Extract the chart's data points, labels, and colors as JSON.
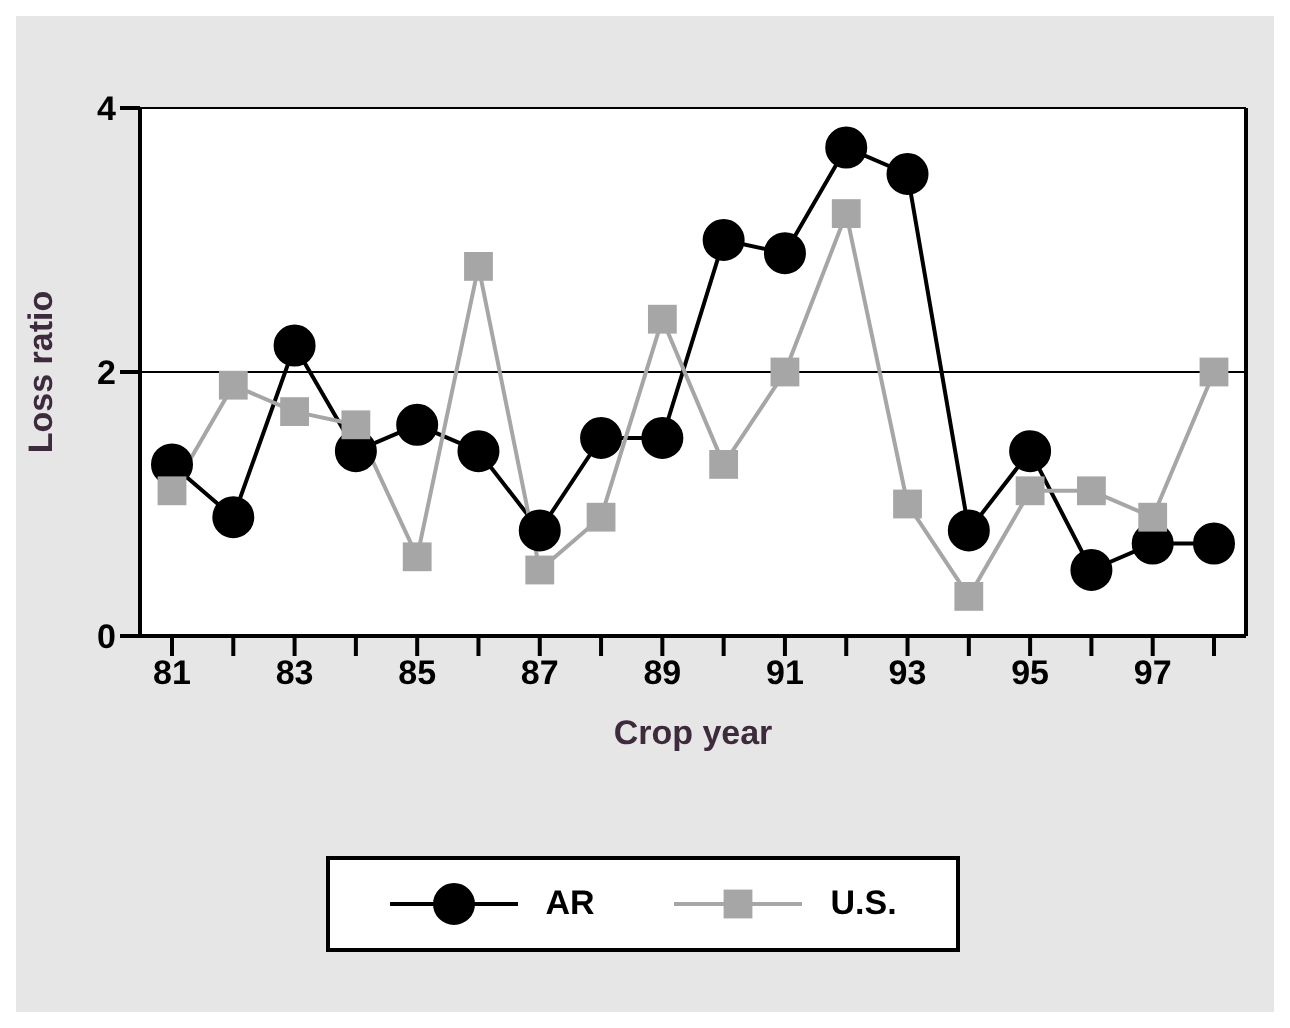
{
  "chart_data": {
    "type": "line",
    "xlabel": "Crop year",
    "ylabel": "Loss ratio",
    "categories": [
      "81",
      null,
      "83",
      null,
      "85",
      null,
      "87",
      null,
      "89",
      null,
      "91",
      null,
      "93",
      null,
      "95",
      null,
      "97",
      null
    ],
    "series": [
      {
        "name": "AR",
        "color": "#000000",
        "marker": "circle",
        "values": [
          1.3,
          0.9,
          2.2,
          1.4,
          1.6,
          1.4,
          0.8,
          1.5,
          1.5,
          3.0,
          2.9,
          3.7,
          3.5,
          0.8,
          1.4,
          0.5,
          0.7,
          0.7
        ]
      },
      {
        "name": "U.S.",
        "color": "#a6a6a6",
        "marker": "square",
        "values": [
          1.1,
          1.9,
          1.7,
          1.6,
          0.6,
          2.8,
          0.5,
          0.9,
          2.4,
          1.3,
          2.0,
          3.2,
          1.0,
          0.3,
          1.1,
          1.1,
          0.9,
          2.0
        ]
      }
    ],
    "ylim": [
      0,
      4
    ],
    "yticks": [
      0,
      2,
      4
    ],
    "grid": "y",
    "legend": "bottom"
  }
}
